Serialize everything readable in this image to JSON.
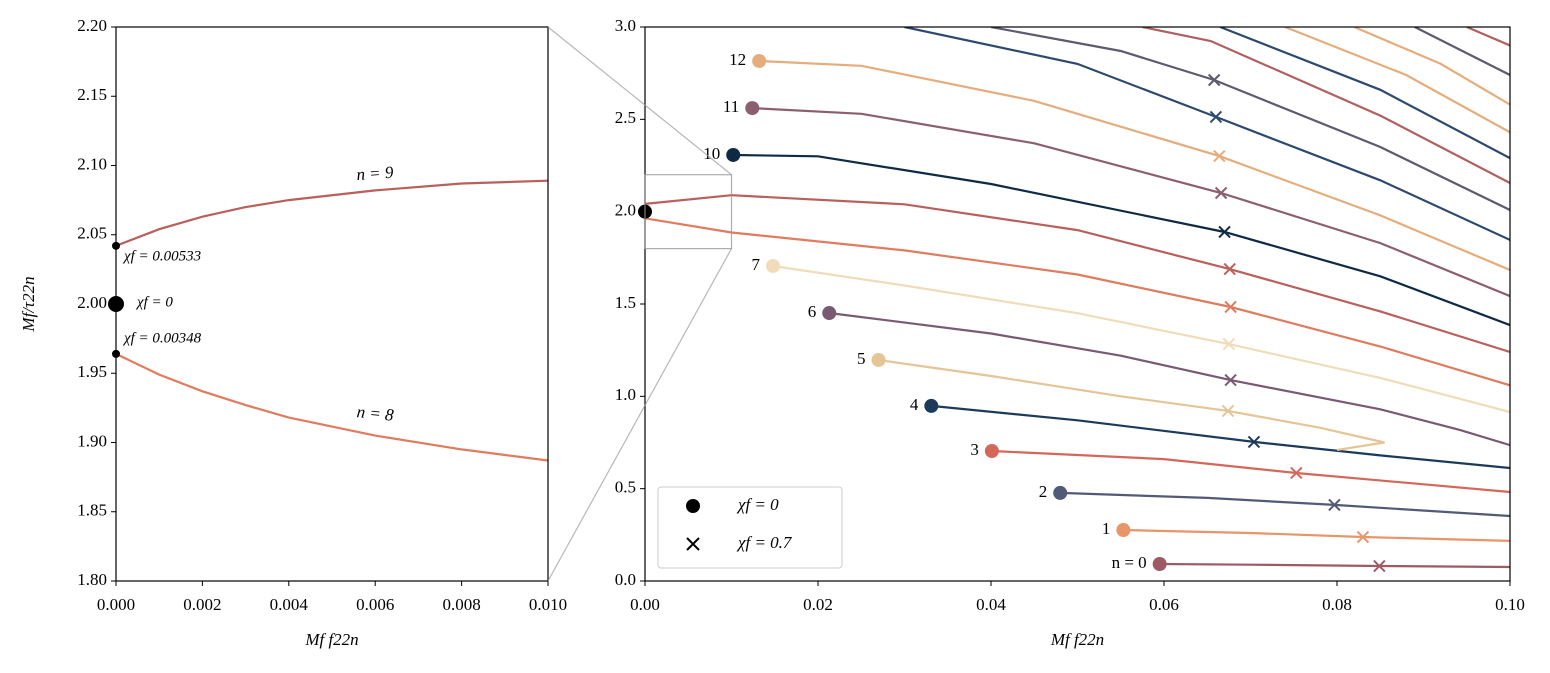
{
  "chart_data": [
    {
      "type": "line",
      "xlabel": "Mf f22n",
      "ylabel": "Mf/τ22n",
      "xlim": [
        0,
        0.01
      ],
      "ylim": [
        1.8,
        2.2
      ],
      "xticks": [
        {
          "value": 0,
          "label": "0.000"
        },
        {
          "value": 0.002,
          "label": "0.002"
        },
        {
          "value": 0.004,
          "label": "0.004"
        },
        {
          "value": 0.006,
          "label": "0.006"
        },
        {
          "value": 0.008,
          "label": "0.008"
        },
        {
          "value": 0.01,
          "label": "0.010"
        }
      ],
      "yticks": [
        {
          "value": 1.8,
          "label": "1.80"
        },
        {
          "value": 1.85,
          "label": "1.85"
        },
        {
          "value": 1.9,
          "label": "1.90"
        },
        {
          "value": 1.95,
          "label": "1.95"
        },
        {
          "value": 2.0,
          "label": "2.00"
        },
        {
          "value": 2.05,
          "label": "2.05"
        },
        {
          "value": 2.1,
          "label": "2.10"
        },
        {
          "value": 2.15,
          "label": "2.15"
        },
        {
          "value": 2.2,
          "label": "2.20"
        }
      ],
      "series": [
        {
          "label": "n = 9",
          "color": "#b9605c",
          "x": [
            0,
            0.001,
            0.002,
            0.003,
            0.004,
            0.006,
            0.008,
            0.01
          ],
          "values": [
            2.042,
            2.054,
            2.063,
            2.07,
            2.075,
            2.082,
            2.087,
            2.089
          ]
        },
        {
          "label": "n = 8",
          "color": "#e07b5e",
          "x": [
            0,
            0.001,
            0.002,
            0.003,
            0.004,
            0.006,
            0.008,
            0.01
          ],
          "values": [
            1.964,
            1.949,
            1.937,
            1.927,
            1.918,
            1.905,
            1.895,
            1.887
          ]
        }
      ],
      "points": [
        {
          "label": "χf = 0.00533",
          "x": 0,
          "y": 2.042
        },
        {
          "label": "χf = 0",
          "x": 0,
          "y": 2.0
        },
        {
          "label": "χf = 0.00348",
          "x": 0,
          "y": 1.964
        }
      ]
    },
    {
      "type": "line",
      "xlabel": "Mf f22n",
      "xlim": [
        0,
        0.1
      ],
      "ylim": [
        0,
        3
      ],
      "xticks": [
        {
          "value": 0,
          "label": "0.00"
        },
        {
          "value": 0.02,
          "label": "0.02"
        },
        {
          "value": 0.04,
          "label": "0.04"
        },
        {
          "value": 0.06,
          "label": "0.06"
        },
        {
          "value": 0.08,
          "label": "0.08"
        },
        {
          "value": 0.1,
          "label": "0.10"
        }
      ],
      "yticks": [
        {
          "value": 0,
          "label": "0.0"
        },
        {
          "value": 0.5,
          "label": "0.5"
        },
        {
          "value": 1,
          "label": "1.0"
        },
        {
          "value": 1.5,
          "label": "1.5"
        },
        {
          "value": 2,
          "label": "2.0"
        },
        {
          "value": 2.5,
          "label": "2.5"
        },
        {
          "value": 3,
          "label": "3.0"
        }
      ],
      "legend": [
        {
          "label": "χf = 0",
          "marker": "dot"
        },
        {
          "label": "χf = 0.7",
          "marker": "cross"
        }
      ],
      "series": [
        {
          "label": "n = 0",
          "color": "#9e5a64",
          "x": [
            0.0595,
            0.07,
            0.0849,
            0.1
          ],
          "values": [
            0.092,
            0.088,
            0.081,
            0.076
          ],
          "start": {
            "x": 0.0595,
            "y": 0.092
          },
          "cross": {
            "x": 0.0849,
            "y": 0.081
          }
        },
        {
          "label": "1",
          "color": "#e8956a",
          "x": [
            0.0553,
            0.07,
            0.083,
            0.1
          ],
          "values": [
            0.276,
            0.26,
            0.238,
            0.217
          ],
          "start": {
            "x": 0.0553,
            "y": 0.276
          },
          "cross": {
            "x": 0.083,
            "y": 0.238
          }
        },
        {
          "label": "2",
          "color": "#525a78",
          "x": [
            0.048,
            0.065,
            0.0797,
            0.1
          ],
          "values": [
            0.477,
            0.45,
            0.412,
            0.352
          ],
          "start": {
            "x": 0.048,
            "y": 0.477
          },
          "cross": {
            "x": 0.0797,
            "y": 0.412
          }
        },
        {
          "label": "3",
          "color": "#d4675a",
          "x": [
            0.0401,
            0.06,
            0.0753,
            0.1
          ],
          "values": [
            0.704,
            0.66,
            0.585,
            0.482
          ],
          "start": {
            "x": 0.0401,
            "y": 0.704
          },
          "cross": {
            "x": 0.0753,
            "y": 0.585
          }
        },
        {
          "label": "4",
          "color": "#1b3a5c",
          "x": [
            0.0331,
            0.05,
            0.0704,
            0.085,
            0.1
          ],
          "values": [
            0.948,
            0.87,
            0.753,
            0.68,
            0.612
          ],
          "start": {
            "x": 0.0331,
            "y": 0.948
          },
          "cross": {
            "x": 0.0704,
            "y": 0.753
          }
        },
        {
          "label": "5",
          "color": "#e5c496",
          "x": [
            0.027,
            0.04,
            0.055,
            0.0674,
            0.078,
            0.0855,
            0.08
          ],
          "values": [
            1.197,
            1.11,
            1.0,
            0.921,
            0.83,
            0.75,
            0.71
          ],
          "start": {
            "x": 0.027,
            "y": 1.197
          },
          "cross": {
            "x": 0.0674,
            "y": 0.921
          }
        },
        {
          "label": "6",
          "color": "#7a5a72",
          "x": [
            0.0213,
            0.04,
            0.055,
            0.0677,
            0.085,
            0.0942,
            0.1
          ],
          "values": [
            1.451,
            1.34,
            1.22,
            1.088,
            0.93,
            0.818,
            0.736
          ],
          "start": {
            "x": 0.0213,
            "y": 1.451
          },
          "cross": {
            "x": 0.0677,
            "y": 1.088
          }
        },
        {
          "label": "7",
          "color": "#f0dcb8",
          "x": [
            0.0148,
            0.03,
            0.05,
            0.0675,
            0.085,
            0.1
          ],
          "values": [
            1.706,
            1.6,
            1.45,
            1.283,
            1.1,
            0.915
          ],
          "start": {
            "x": 0.0148,
            "y": 1.706
          },
          "cross": {
            "x": 0.0675,
            "y": 1.283
          }
        },
        {
          "label": "8",
          "color": "#e07b5e",
          "x": [
            0,
            0.01,
            0.03,
            0.05,
            0.0677,
            0.085,
            0.1
          ],
          "values": [
            1.964,
            1.887,
            1.79,
            1.66,
            1.484,
            1.27,
            1.06
          ],
          "cross": {
            "x": 0.0677,
            "y": 1.484
          }
        },
        {
          "label": "9",
          "color": "#b9605c",
          "x": [
            0,
            0.01,
            0.03,
            0.05,
            0.0676,
            0.085,
            0.1
          ],
          "values": [
            2.042,
            2.089,
            2.04,
            1.9,
            1.689,
            1.46,
            1.24
          ],
          "cross": {
            "x": 0.0676,
            "y": 1.689
          }
        },
        {
          "label": "10",
          "color": "#0f2a45",
          "x": [
            0.0102,
            0.02,
            0.04,
            0.067,
            0.085,
            0.1
          ],
          "values": [
            2.307,
            2.3,
            2.15,
            1.89,
            1.65,
            1.386
          ],
          "start": {
            "x": 0.0102,
            "y": 2.307
          },
          "cross": {
            "x": 0.067,
            "y": 1.89
          }
        },
        {
          "label": "11",
          "color": "#8c5f6e",
          "x": [
            0.0124,
            0.025,
            0.045,
            0.0666,
            0.085,
            0.1
          ],
          "values": [
            2.561,
            2.53,
            2.37,
            2.101,
            1.83,
            1.543
          ],
          "start": {
            "x": 0.0124,
            "y": 2.561
          },
          "cross": {
            "x": 0.0666,
            "y": 2.101
          }
        },
        {
          "label": "12",
          "color": "#e6ac7c",
          "x": [
            0.0132,
            0.025,
            0.045,
            0.0664,
            0.085,
            0.1
          ],
          "values": [
            2.816,
            2.79,
            2.6,
            2.301,
            1.98,
            1.684
          ],
          "start": {
            "x": 0.0132,
            "y": 2.816
          },
          "cross": {
            "x": 0.0664,
            "y": 2.301
          }
        },
        {
          "color": "#2d4a6e",
          "x": [
            0.03,
            0.05,
            0.066,
            0.085,
            0.1
          ],
          "values": [
            3.0,
            2.8,
            2.513,
            2.17,
            1.847
          ],
          "cross": {
            "x": 0.066,
            "y": 2.513
          }
        },
        {
          "color": "#5e5a70",
          "x": [
            0.04,
            0.055,
            0.0658,
            0.085,
            0.1
          ],
          "values": [
            3.0,
            2.87,
            2.713,
            2.35,
            2.009
          ],
          "cross": {
            "x": 0.0658,
            "y": 2.713
          }
        },
        {
          "color": "#b06060",
          "x": [
            0.0575,
            0.0654,
            0.085,
            0.1
          ],
          "values": [
            3.0,
            2.924,
            2.52,
            2.155
          ]
        },
        {
          "color": "#2d4a6e",
          "x": [
            0.0665,
            0.085,
            0.1
          ],
          "values": [
            3.0,
            2.66,
            2.29
          ]
        },
        {
          "color": "#e6ac7c",
          "x": [
            0.074,
            0.088,
            0.1
          ],
          "values": [
            3.0,
            2.74,
            2.43
          ]
        },
        {
          "color": "#e6ac7c",
          "x": [
            0.082,
            0.092,
            0.1
          ],
          "values": [
            3.0,
            2.8,
            2.58
          ]
        },
        {
          "color": "#5e5a70",
          "x": [
            0.089,
            0.1
          ],
          "values": [
            3.0,
            2.74
          ]
        },
        {
          "color": "#b06060",
          "x": [
            0.095,
            0.1
          ],
          "values": [
            3.0,
            2.9
          ]
        }
      ],
      "origin": {
        "x": 0,
        "y": 2.0
      }
    }
  ]
}
